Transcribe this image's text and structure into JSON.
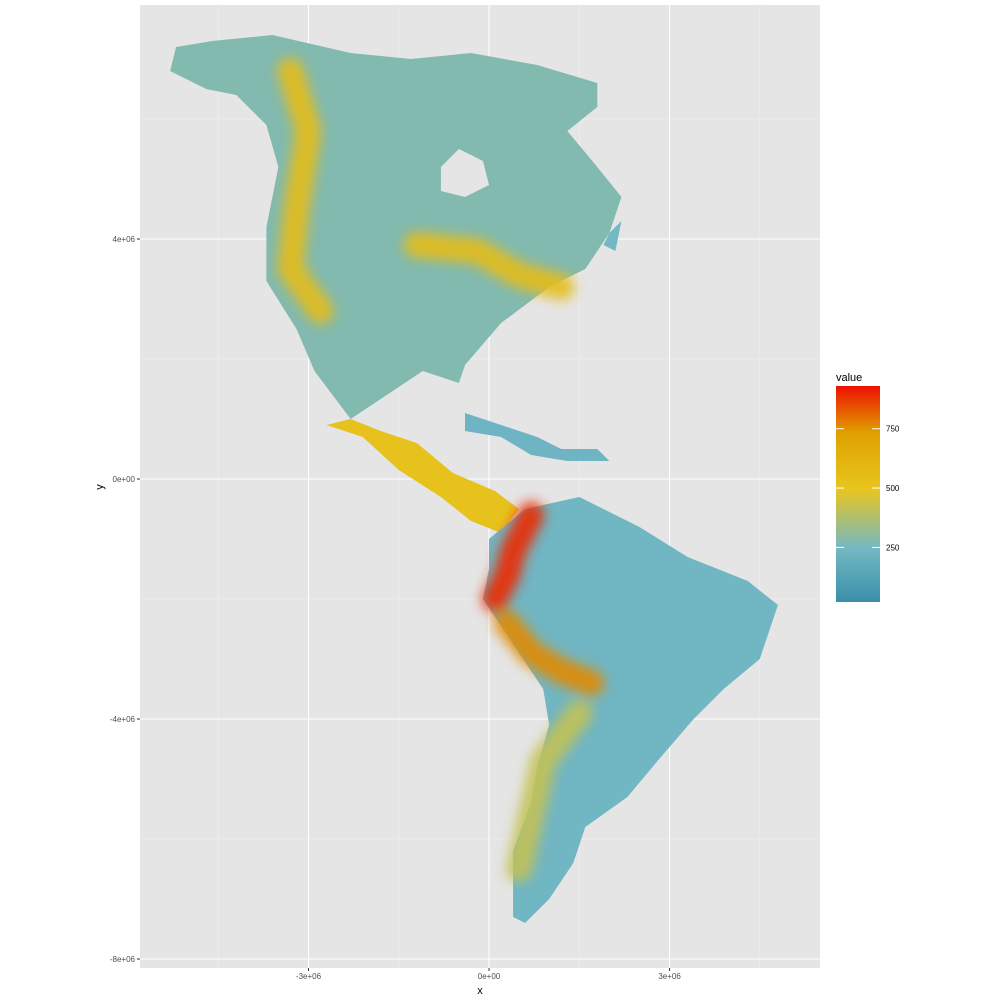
{
  "chart_data": {
    "type": "heatmap",
    "title": "",
    "xlabel": "x",
    "ylabel": "y",
    "x_ticks": [
      "-3e+06",
      "0e+00",
      "3e+06"
    ],
    "y_ticks": [
      "4e+06",
      "0e+00",
      "-4e+06",
      "-8e+06"
    ],
    "x_tick_values": [
      -3000000,
      0,
      3000000
    ],
    "y_tick_values": [
      4000000,
      0,
      -4000000,
      -8000000
    ],
    "xlim": [
      -5800000,
      5500000
    ],
    "ylim": [
      -8150000,
      7900000
    ],
    "legend": {
      "title": "value",
      "labels": [
        "750",
        "500",
        "250"
      ],
      "label_values": [
        750,
        500,
        250
      ],
      "range": [
        20,
        930
      ],
      "placement": "right"
    },
    "colors": {
      "panel": "#e5e5e5",
      "grid_major": "#ffffff",
      "grid_minor": "#f0f0f0",
      "scale_low": "#3a8fa8",
      "scale_mid_low": "#74b8c4",
      "scale_mid": "#e8c520",
      "scale_mid_high": "#e0a200",
      "scale_high": "#ee1000"
    },
    "regions": [
      {
        "name": "north-america",
        "rings": [
          [
            -5200,
            7200
          ],
          [
            -4600,
            7300
          ],
          [
            -3600,
            7400
          ],
          [
            -2300,
            7100
          ],
          [
            -1300,
            7000
          ],
          [
            -300,
            7100
          ],
          [
            800,
            6900
          ],
          [
            1800,
            6600
          ],
          [
            1800,
            6200
          ],
          [
            1300,
            5800
          ],
          [
            1800,
            5200
          ],
          [
            2200,
            4700
          ],
          [
            2000,
            4100
          ],
          [
            1600,
            3500
          ],
          [
            1000,
            3200
          ],
          [
            200,
            2600
          ],
          [
            -400,
            1900
          ],
          [
            -500,
            1600
          ],
          [
            -1100,
            1800
          ],
          [
            -1700,
            1400
          ],
          [
            -2300,
            1000
          ],
          [
            -2900,
            1800
          ],
          [
            -3200,
            2500
          ],
          [
            -3700,
            3300
          ],
          [
            -3700,
            4200
          ],
          [
            -3500,
            5200
          ],
          [
            -3700,
            5900
          ],
          [
            -4200,
            6400
          ],
          [
            -4700,
            6500
          ],
          [
            -5300,
            6800
          ]
        ],
        "value": 280
      },
      {
        "name": "hudson-bay-gap",
        "rings": [
          [
            -800,
            5200
          ],
          [
            -500,
            5500
          ],
          [
            -100,
            5300
          ],
          [
            0,
            4900
          ],
          [
            -400,
            4700
          ],
          [
            -800,
            4800
          ]
        ],
        "value": 0
      },
      {
        "name": "central-america",
        "rings": [
          [
            -2700,
            900
          ],
          [
            -2100,
            700
          ],
          [
            -1500,
            150
          ],
          [
            -800,
            -300
          ],
          [
            -300,
            -700
          ],
          [
            200,
            -900
          ],
          [
            500,
            -500
          ],
          [
            100,
            -200
          ],
          [
            -600,
            100
          ],
          [
            -1200,
            600
          ],
          [
            -1800,
            800
          ],
          [
            -2300,
            1000
          ]
        ],
        "value": 520
      },
      {
        "name": "south-america",
        "rings": [
          [
            0,
            -1000
          ],
          [
            600,
            -500
          ],
          [
            1500,
            -300
          ],
          [
            2500,
            -800
          ],
          [
            3300,
            -1300
          ],
          [
            4300,
            -1700
          ],
          [
            4800,
            -2100
          ],
          [
            4500,
            -3000
          ],
          [
            3900,
            -3500
          ],
          [
            3400,
            -4000
          ],
          [
            2800,
            -4700
          ],
          [
            2300,
            -5300
          ],
          [
            1600,
            -5800
          ],
          [
            1400,
            -6400
          ],
          [
            1000,
            -7000
          ],
          [
            600,
            -7400
          ],
          [
            400,
            -7300
          ],
          [
            400,
            -6200
          ],
          [
            700,
            -5400
          ],
          [
            800,
            -4800
          ],
          [
            1000,
            -4100
          ],
          [
            900,
            -3500
          ],
          [
            300,
            -2600
          ],
          [
            -100,
            -2000
          ],
          [
            0,
            -1500
          ]
        ],
        "value": 240
      },
      {
        "name": "caribbean-islands",
        "rings": [
          [
            -400,
            1100
          ],
          [
            200,
            900
          ],
          [
            800,
            700
          ],
          [
            1200,
            500
          ],
          [
            1800,
            500
          ],
          [
            2000,
            300
          ],
          [
            1300,
            300
          ],
          [
            700,
            400
          ],
          [
            200,
            700
          ],
          [
            -400,
            800
          ]
        ],
        "value": 230
      },
      {
        "name": "greenland-edge",
        "rings": [
          [
            2000,
            4100
          ],
          [
            2200,
            4300
          ],
          [
            2100,
            3800
          ],
          [
            1900,
            3900
          ]
        ],
        "value": 250
      }
    ],
    "hotspots": [
      {
        "name": "rocky-mountains-band",
        "points": [
          [
            -3300,
            6800
          ],
          [
            -3000,
            5800
          ],
          [
            -3200,
            4500
          ],
          [
            -3300,
            3500
          ],
          [
            -2800,
            2800
          ]
        ],
        "value": 560
      },
      {
        "name": "appalachian-band",
        "points": [
          [
            -1200,
            3900
          ],
          [
            -200,
            3800
          ],
          [
            500,
            3400
          ],
          [
            1200,
            3200
          ]
        ],
        "value": 560
      },
      {
        "name": "northern-andes",
        "points": [
          [
            700,
            -600
          ],
          [
            400,
            -1200
          ],
          [
            300,
            -1600
          ],
          [
            100,
            -2000
          ]
        ],
        "value": 900
      },
      {
        "name": "central-andes",
        "points": [
          [
            300,
            -2400
          ],
          [
            700,
            -2900
          ],
          [
            1200,
            -3200
          ],
          [
            1700,
            -3400
          ]
        ],
        "value": 780
      },
      {
        "name": "southern-andes",
        "points": [
          [
            1500,
            -3900
          ],
          [
            900,
            -4700
          ],
          [
            700,
            -5600
          ],
          [
            500,
            -6500
          ]
        ],
        "value": 420
      }
    ]
  }
}
